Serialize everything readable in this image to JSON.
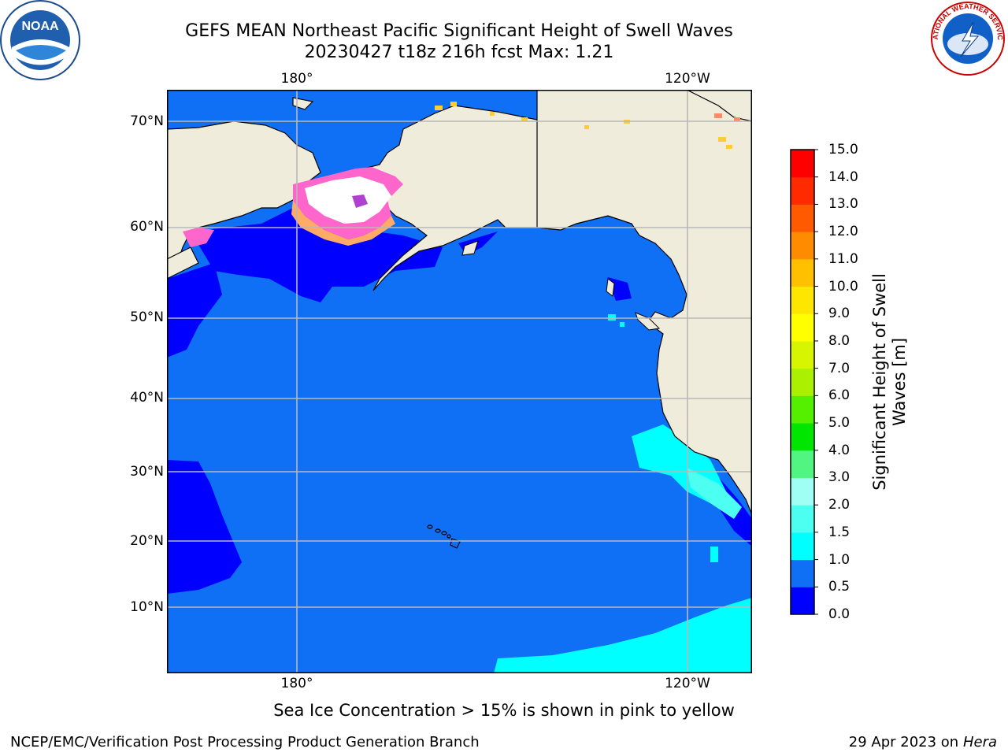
{
  "title": {
    "line1": "GEFS MEAN Northeast Pacific Significant Height of Swell Waves",
    "line2": "20230427 t18z 216h fcst   Max: 1.21"
  },
  "map": {
    "lon_ticks_top": [
      "180°",
      "120°W"
    ],
    "lon_ticks_bottom": [
      "180°",
      "120°W"
    ],
    "lat_ticks": [
      "70°N",
      "60°N",
      "50°N",
      "40°N",
      "30°N",
      "20°N",
      "10°N"
    ],
    "colors": {
      "land": "#efecdc",
      "ocean_base": "#0f6ff5",
      "ice_white": "#ffffff",
      "ice_pink": "#ff66cc",
      "ice_orange": "#ffaa66",
      "gridline": "#b8b8b8"
    }
  },
  "colorbar": {
    "label": "Significant Height of Swell Waves [m]",
    "label_line1": "Significant Height of Swell",
    "label_line2": "Waves [m]",
    "ticks": [
      "15.0",
      "14.0",
      "13.0",
      "12.0",
      "11.0",
      "10.0",
      "9.0",
      "8.0",
      "7.0",
      "6.0",
      "5.0",
      "4.0",
      "3.0",
      "2.0",
      "1.5",
      "1.0",
      "0.5",
      "0.0"
    ],
    "colors": [
      "#0000ff",
      "#0f6ff5",
      "#00ffff",
      "#4dfff0",
      "#a0fff5",
      "#50f582",
      "#00e600",
      "#55f000",
      "#aaf000",
      "#d8f500",
      "#ffff00",
      "#ffe600",
      "#ffc000",
      "#ff8c00",
      "#ff5a00",
      "#ff2a00",
      "#ff0000"
    ]
  },
  "note": "Sea Ice Concentration > 15% is shown in pink to yellow",
  "footer": {
    "left": "NCEP/EMC/Verification Post Processing Product Generation Branch",
    "right_date": "29 Apr 2023 on ",
    "right_machine": "Hera"
  },
  "logos": {
    "noaa_text": "NOAA",
    "nws_text": "NATIONAL WEATHER SERVICE"
  }
}
